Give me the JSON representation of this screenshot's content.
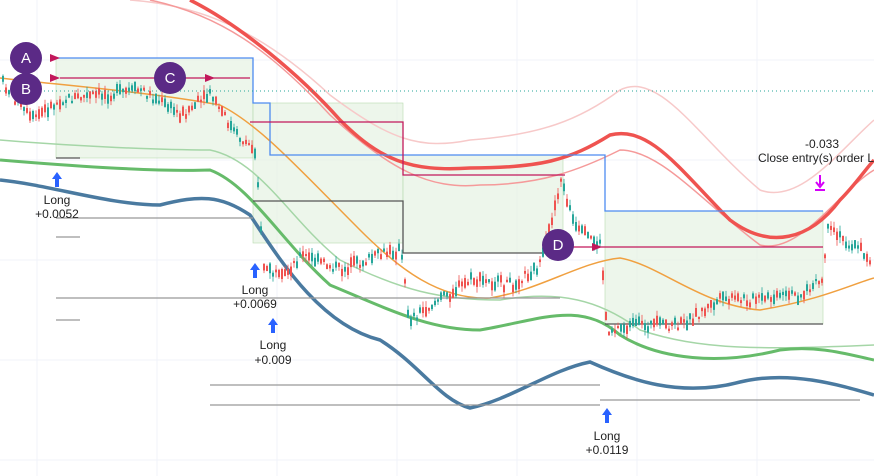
{
  "markers": [
    "A",
    "B",
    "C",
    "D"
  ],
  "trades": [
    {
      "side": "Long",
      "result": "+0.0052"
    },
    {
      "side": "Long",
      "result": "+0.0069"
    },
    {
      "side": "Long",
      "result": "+0.009"
    },
    {
      "side": "Long",
      "result": "+0.0119"
    }
  ],
  "exit": {
    "result": "-0.033",
    "text": "Close entry(s) order L"
  }
}
